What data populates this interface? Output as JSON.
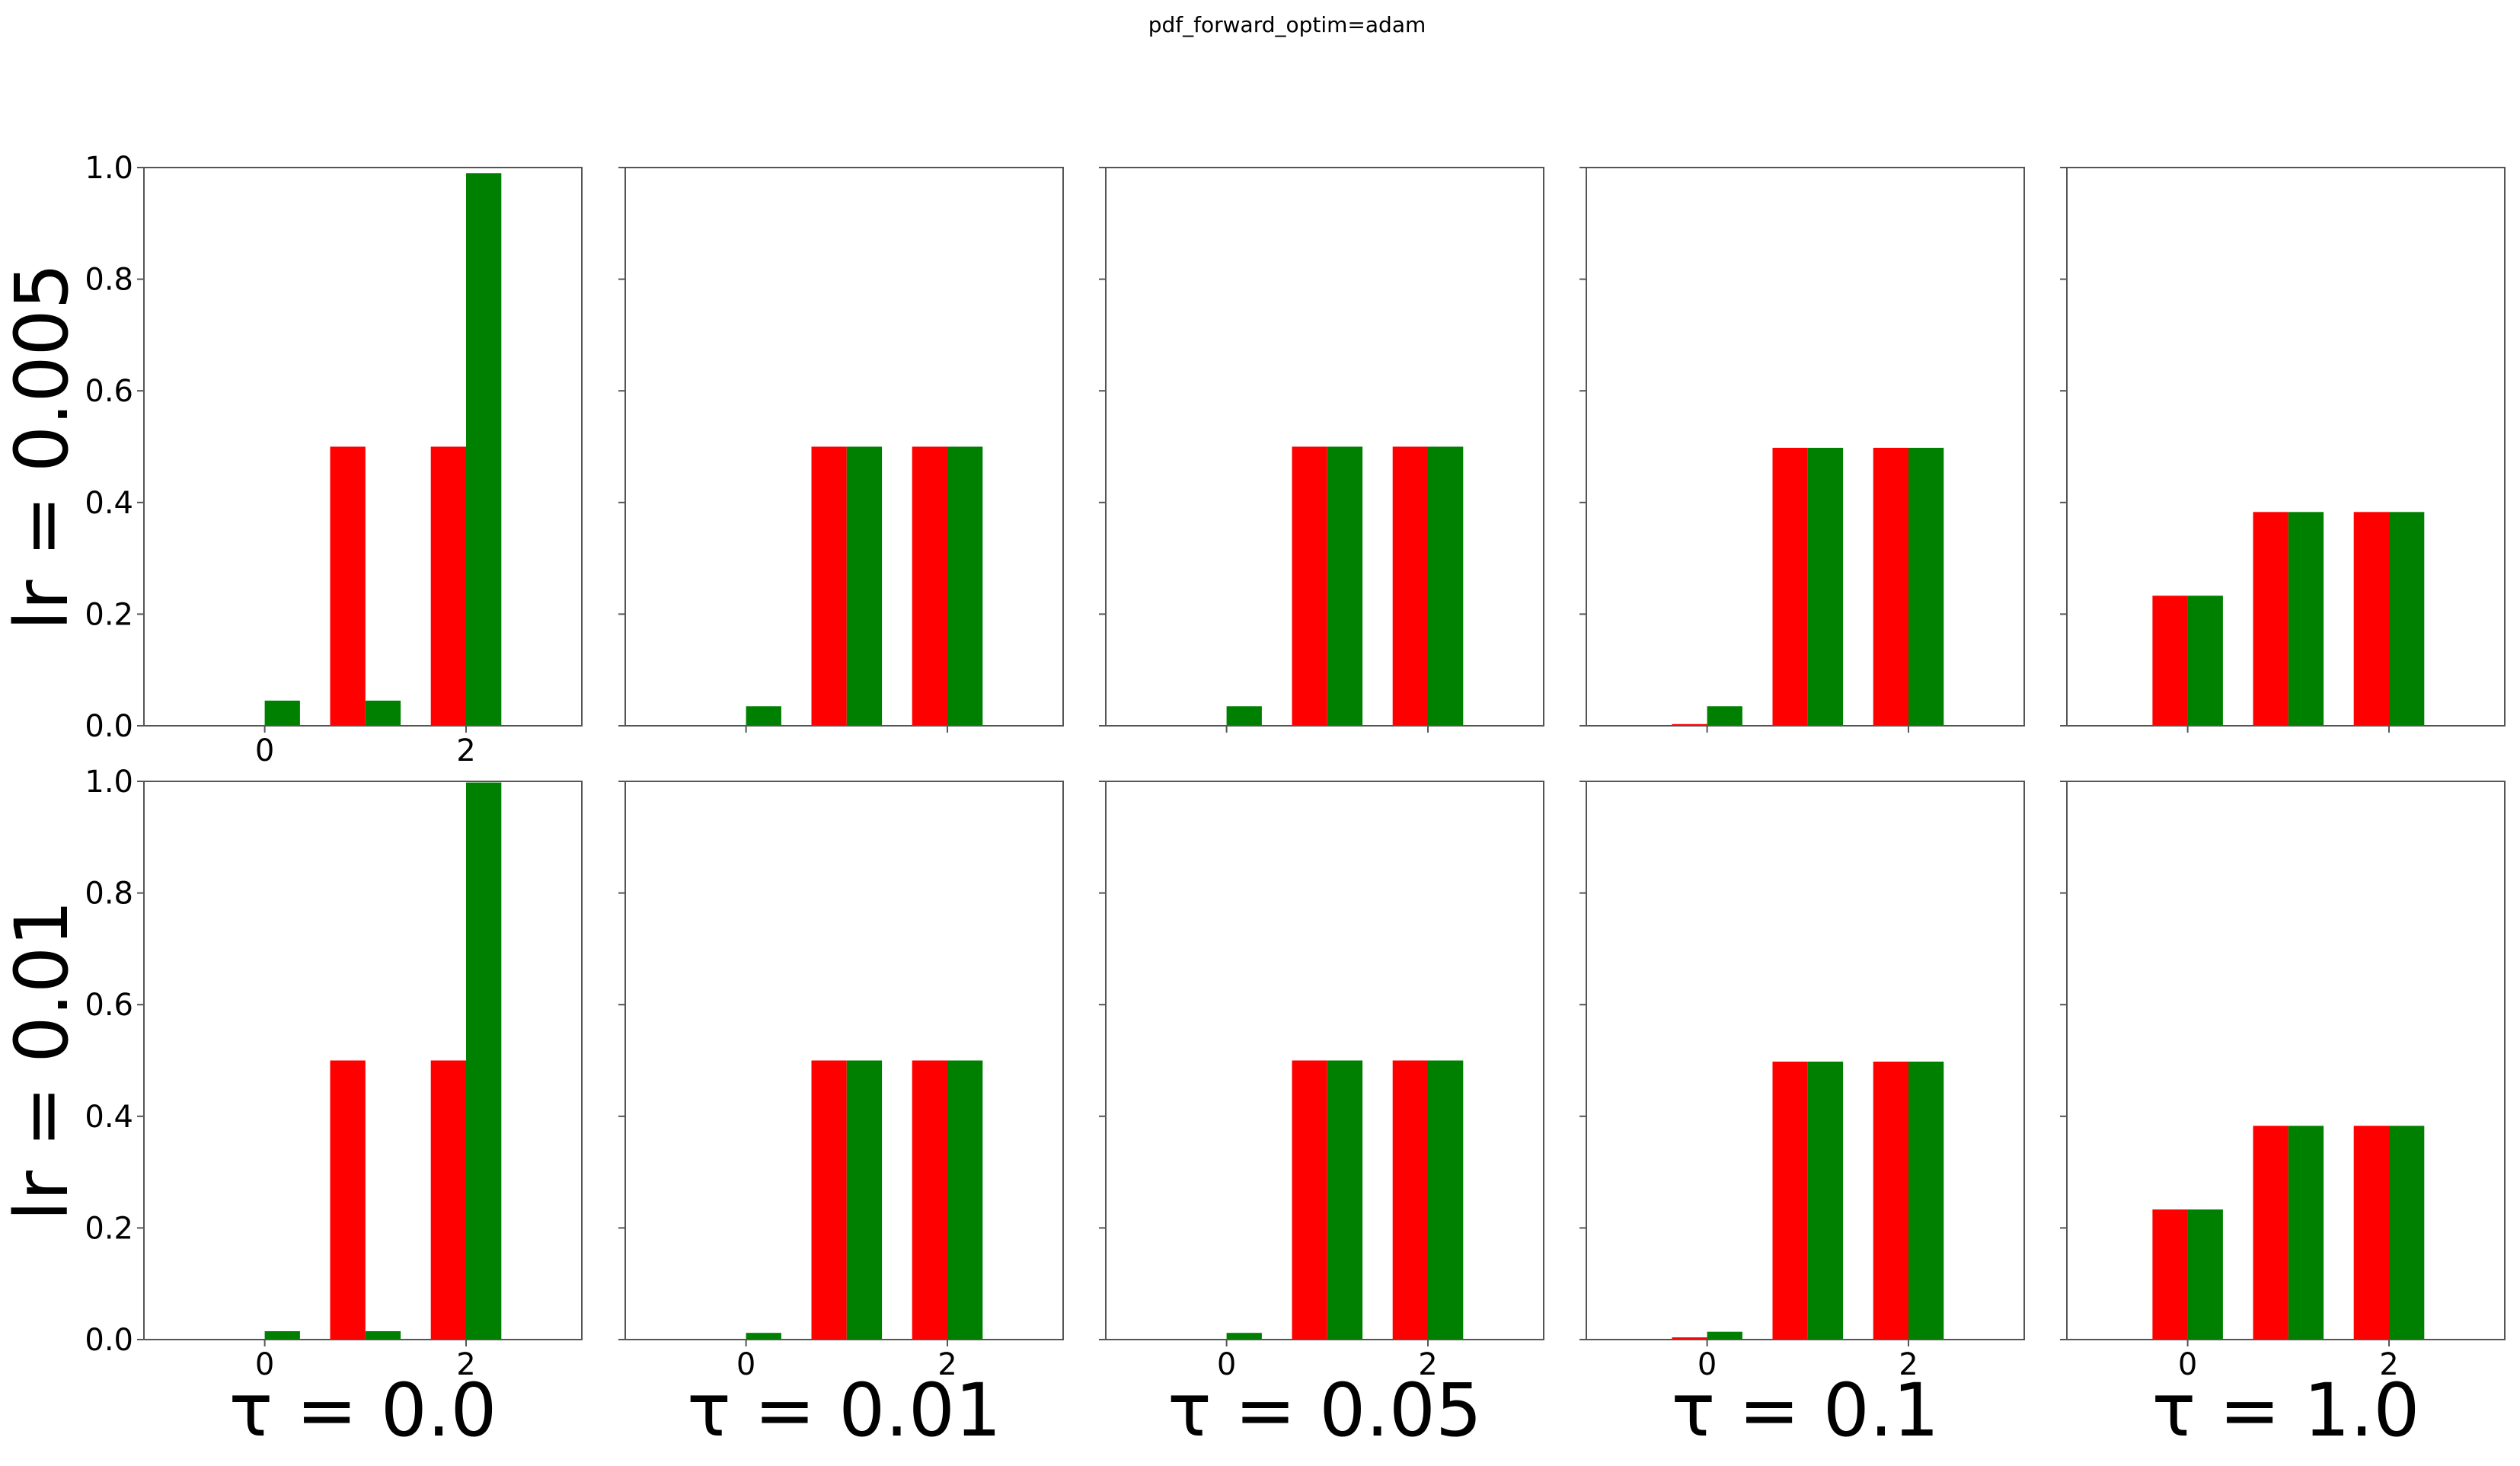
{
  "figure": {
    "suptitle": "pdf_forward_optim=adam",
    "series_colors": [
      "#ff0000",
      "#008000"
    ],
    "row_labels": [
      "lr = 0.005",
      "lr = 0.01"
    ],
    "col_labels": [
      "τ = 0.0",
      "τ = 0.01",
      "τ = 0.05",
      "τ = 0.1",
      "τ = 1.0"
    ]
  },
  "chart_data": [
    {
      "type": "bar",
      "row": 0,
      "col": 0,
      "categories": [
        0,
        1,
        2
      ],
      "series": [
        {
          "values": [
            0.0,
            0.5,
            0.5
          ]
        },
        {
          "values": [
            0.045,
            0.045,
            0.99
          ]
        }
      ],
      "ylim": [
        0,
        1.0
      ],
      "yticks": [
        "0.0",
        "0.2",
        "0.4",
        "0.6",
        "0.8",
        "1.0"
      ],
      "xticks": [
        "0",
        "2"
      ]
    },
    {
      "type": "bar",
      "row": 0,
      "col": 1,
      "categories": [
        0,
        1,
        2
      ],
      "series": [
        {
          "values": [
            0.0,
            0.5,
            0.5
          ]
        },
        {
          "values": [
            0.035,
            0.5,
            0.5
          ]
        }
      ],
      "ylim": [
        0,
        1.0
      ],
      "yticks": [],
      "xticks": []
    },
    {
      "type": "bar",
      "row": 0,
      "col": 2,
      "categories": [
        0,
        1,
        2
      ],
      "series": [
        {
          "values": [
            0.0,
            0.5,
            0.5
          ]
        },
        {
          "values": [
            0.035,
            0.5,
            0.5
          ]
        }
      ],
      "ylim": [
        0,
        1.0
      ],
      "yticks": [],
      "xticks": []
    },
    {
      "type": "bar",
      "row": 0,
      "col": 3,
      "categories": [
        0,
        1,
        2
      ],
      "series": [
        {
          "values": [
            0.003,
            0.498,
            0.498
          ]
        },
        {
          "values": [
            0.035,
            0.498,
            0.498
          ]
        }
      ],
      "ylim": [
        0,
        1.0
      ],
      "yticks": [],
      "xticks": []
    },
    {
      "type": "bar",
      "row": 0,
      "col": 4,
      "categories": [
        0,
        1,
        2
      ],
      "series": [
        {
          "values": [
            0.233,
            0.383,
            0.383
          ]
        },
        {
          "values": [
            0.233,
            0.383,
            0.383
          ]
        }
      ],
      "ylim": [
        0,
        1.0
      ],
      "yticks": [],
      "xticks": []
    },
    {
      "type": "bar",
      "row": 1,
      "col": 0,
      "categories": [
        0,
        1,
        2
      ],
      "series": [
        {
          "values": [
            0.0,
            0.5,
            0.5
          ]
        },
        {
          "values": [
            0.015,
            0.015,
            0.998
          ]
        }
      ],
      "ylim": [
        0,
        1.0
      ],
      "yticks": [
        "0.0",
        "0.2",
        "0.4",
        "0.6",
        "0.8",
        "1.0"
      ],
      "xticks": [
        "0",
        "2"
      ]
    },
    {
      "type": "bar",
      "row": 1,
      "col": 1,
      "categories": [
        0,
        1,
        2
      ],
      "series": [
        {
          "values": [
            0.0,
            0.5,
            0.5
          ]
        },
        {
          "values": [
            0.012,
            0.5,
            0.5
          ]
        }
      ],
      "ylim": [
        0,
        1.0
      ],
      "yticks": [],
      "xticks": [
        "0",
        "2"
      ]
    },
    {
      "type": "bar",
      "row": 1,
      "col": 2,
      "categories": [
        0,
        1,
        2
      ],
      "series": [
        {
          "values": [
            0.0,
            0.5,
            0.5
          ]
        },
        {
          "values": [
            0.012,
            0.5,
            0.5
          ]
        }
      ],
      "ylim": [
        0,
        1.0
      ],
      "yticks": [],
      "xticks": [
        "0",
        "2"
      ]
    },
    {
      "type": "bar",
      "row": 1,
      "col": 3,
      "categories": [
        0,
        1,
        2
      ],
      "series": [
        {
          "values": [
            0.004,
            0.498,
            0.498
          ]
        },
        {
          "values": [
            0.014,
            0.498,
            0.498
          ]
        }
      ],
      "ylim": [
        0,
        1.0
      ],
      "yticks": [],
      "xticks": [
        "0",
        "2"
      ]
    },
    {
      "type": "bar",
      "row": 1,
      "col": 4,
      "categories": [
        0,
        1,
        2
      ],
      "series": [
        {
          "values": [
            0.233,
            0.383,
            0.383
          ]
        },
        {
          "values": [
            0.233,
            0.383,
            0.383
          ]
        }
      ],
      "ylim": [
        0,
        1.0
      ],
      "yticks": [],
      "xticks": [
        "0",
        "2"
      ]
    }
  ]
}
